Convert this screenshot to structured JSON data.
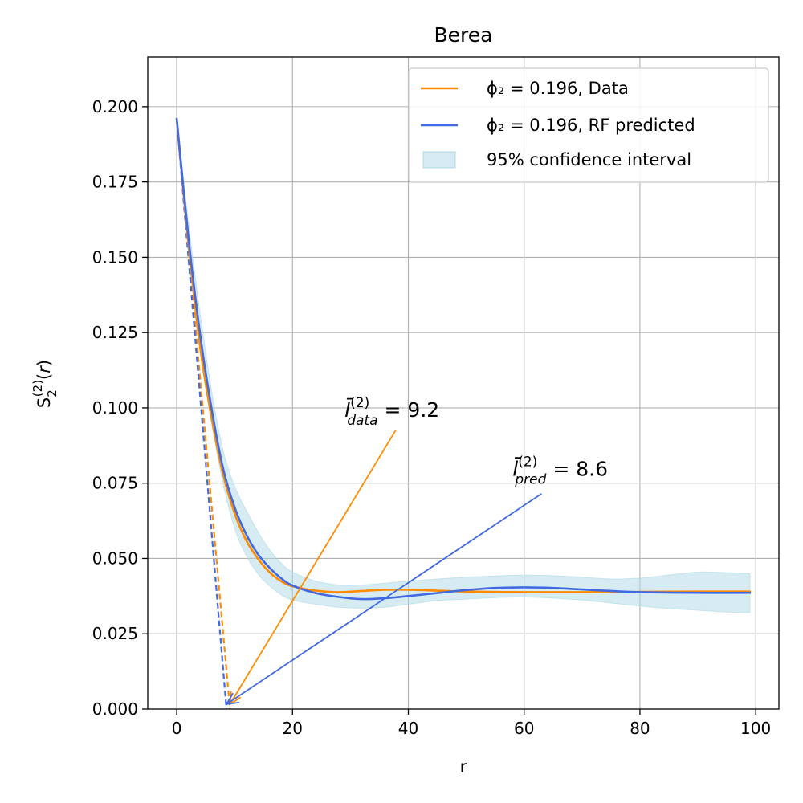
{
  "chart_data": {
    "type": "line",
    "title": "Berea",
    "xlabel": "r",
    "ylabel": "S₂⁽²⁾(r)",
    "xlim": [
      -5,
      104
    ],
    "ylim": [
      0,
      0.2165
    ],
    "xticks": [
      0,
      20,
      40,
      60,
      80,
      100
    ],
    "yticks": [
      0.0,
      0.025,
      0.05,
      0.075,
      0.1,
      0.125,
      0.15,
      0.175,
      0.2
    ],
    "xtick_labels": [
      "0",
      "20",
      "40",
      "60",
      "80",
      "100"
    ],
    "ytick_labels": [
      "0.000",
      "0.025",
      "0.050",
      "0.075",
      "0.100",
      "0.125",
      "0.150",
      "0.175",
      "0.200"
    ],
    "grid": true,
    "legend_position": "top-right",
    "series": [
      {
        "name": "ϕ₂ = 0.196, Data",
        "color": "#ff8c00",
        "style": "solid",
        "x": [
          0,
          2,
          4,
          6,
          8,
          10,
          12,
          14,
          16,
          18,
          20,
          24,
          28,
          32,
          36,
          40,
          45,
          50,
          60,
          70,
          80,
          90,
          99
        ],
        "y": [
          0.196,
          0.155,
          0.121,
          0.097,
          0.078,
          0.065,
          0.056,
          0.05,
          0.0455,
          0.0425,
          0.0408,
          0.0393,
          0.0388,
          0.0392,
          0.0396,
          0.0396,
          0.0393,
          0.039,
          0.0388,
          0.0388,
          0.0389,
          0.039,
          0.039
        ]
      },
      {
        "name": "ϕ₂ = 0.196, RF predicted",
        "color": "#4169e1",
        "style": "solid",
        "x": [
          0,
          2,
          4,
          6,
          8,
          10,
          12,
          14,
          16,
          18,
          20,
          24,
          28,
          32,
          36,
          40,
          45,
          50,
          55,
          60,
          65,
          70,
          75,
          80,
          90,
          99
        ],
        "y": [
          0.196,
          0.157,
          0.125,
          0.1,
          0.08,
          0.067,
          0.058,
          0.0515,
          0.047,
          0.0435,
          0.041,
          0.0385,
          0.0372,
          0.0365,
          0.0368,
          0.0375,
          0.0385,
          0.0395,
          0.0402,
          0.0404,
          0.0402,
          0.0397,
          0.0392,
          0.0388,
          0.0386,
          0.0386
        ]
      },
      {
        "name": "95% confidence interval",
        "type": "band",
        "color": "#add8e6",
        "x": [
          0,
          2,
          4,
          6,
          8,
          10,
          12,
          14,
          16,
          18,
          20,
          24,
          28,
          32,
          36,
          40,
          45,
          50,
          55,
          60,
          65,
          70,
          75,
          80,
          85,
          90,
          95,
          99
        ],
        "lower": [
          0.195,
          0.152,
          0.119,
          0.095,
          0.075,
          0.06,
          0.051,
          0.045,
          0.041,
          0.038,
          0.0362,
          0.0348,
          0.0338,
          0.0335,
          0.0338,
          0.0348,
          0.036,
          0.0365,
          0.037,
          0.0372,
          0.0368,
          0.0362,
          0.0352,
          0.0342,
          0.0334,
          0.0328,
          0.0322,
          0.032
        ],
        "upper": [
          0.197,
          0.162,
          0.132,
          0.106,
          0.086,
          0.074,
          0.066,
          0.059,
          0.053,
          0.0485,
          0.0455,
          0.0425,
          0.0412,
          0.0412,
          0.0418,
          0.0425,
          0.0432,
          0.0438,
          0.0442,
          0.0445,
          0.0443,
          0.0438,
          0.0432,
          0.0435,
          0.0445,
          0.0455,
          0.0453,
          0.045
        ]
      }
    ],
    "tangent_lines": [
      {
        "series": "ϕ₂ = 0.196, Data",
        "color": "#ff8c00",
        "style": "dashed",
        "x": [
          0,
          9.2
        ],
        "y": [
          0.196,
          0
        ]
      },
      {
        "series": "ϕ₂ = 0.196, RF predicted",
        "color": "#4169e1",
        "style": "dashed",
        "x": [
          0,
          8.6
        ],
        "y": [
          0.196,
          0
        ]
      }
    ],
    "annotations": [
      {
        "id": "data",
        "base": "l̄",
        "sup": "(2)",
        "sub": "data",
        "value_text": "= 9.2",
        "color": "#ff8c00",
        "text_x": 29,
        "text_y": 0.097,
        "arrow_from": [
          37.8,
          0.0925
        ],
        "arrow_to": [
          9.2,
          0
        ]
      },
      {
        "id": "pred",
        "base": "l̄",
        "sup": "(2)",
        "sub": "pred",
        "value_text": "= 8.6",
        "color": "#4169e1",
        "text_x": 58,
        "text_y": 0.0775,
        "arrow_from": [
          63,
          0.0715
        ],
        "arrow_to": [
          8.6,
          0
        ]
      }
    ]
  }
}
